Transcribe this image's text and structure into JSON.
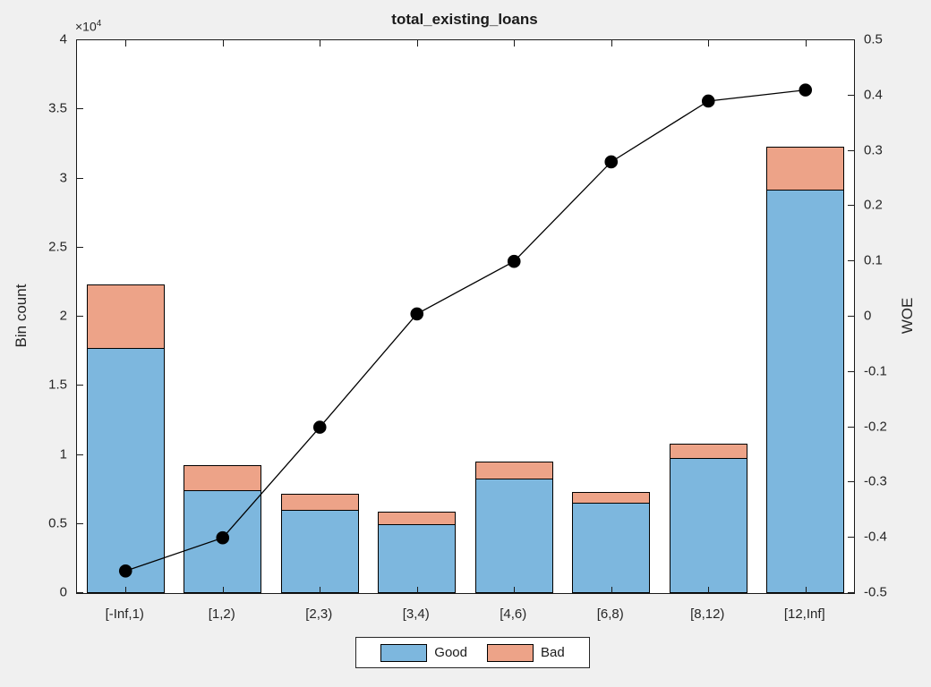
{
  "figure": {
    "title": "total_existing_loans",
    "left_axis_label": "Bin count",
    "right_axis_label": "WOE",
    "exponent_base": "×10",
    "exponent_power": "4"
  },
  "legend": {
    "items": [
      {
        "label": "Good",
        "color": "#7DB7DE"
      },
      {
        "label": "Bad",
        "color": "#EDA388"
      }
    ]
  },
  "colors": {
    "good_bar": "#7DB7DE",
    "bad_bar": "#EDA388",
    "woe_line": "#000000",
    "axis": "#1a1a1a",
    "figure_background": "#f0f0f0",
    "plot_background": "#ffffff"
  },
  "chart_data": {
    "type": "bar",
    "subtype": "stacked-bars-with-line-overlay-dual-axis",
    "title": "total_existing_loans",
    "categories": [
      "[-Inf,1)",
      "[1,2)",
      "[2,3)",
      "[3,4)",
      "[4,6)",
      "[6,8)",
      "[8,12)",
      "[12,Inf]"
    ],
    "series": [
      {
        "name": "Good",
        "type": "bar",
        "stack": "bincount",
        "axis": "left",
        "values": [
          17750,
          7450,
          6000,
          5000,
          8300,
          6550,
          9750,
          29200
        ]
      },
      {
        "name": "Bad",
        "type": "bar",
        "stack": "bincount",
        "axis": "left",
        "values": [
          4550,
          1800,
          1200,
          875,
          1230,
          780,
          1080,
          3100
        ]
      },
      {
        "name": "WOE",
        "type": "line",
        "axis": "right",
        "marker": "filled-circle",
        "values": [
          -0.46,
          -0.4,
          -0.2,
          0.005,
          0.1,
          0.28,
          0.39,
          0.41
        ]
      }
    ],
    "left_axis": {
      "label": "Bin count",
      "min": 0,
      "max": 40000,
      "tick_step": 5000,
      "tick_labels": [
        "0",
        "0.5",
        "1",
        "1.5",
        "2",
        "2.5",
        "3",
        "3.5",
        "4"
      ],
      "multiplier": "×10⁴"
    },
    "right_axis": {
      "label": "WOE",
      "min": -0.5,
      "max": 0.5,
      "tick_step": 0.1,
      "tick_labels": [
        "-0.5",
        "-0.4",
        "-0.3",
        "-0.2",
        "-0.1",
        "0",
        "0.1",
        "0.2",
        "0.3",
        "0.4",
        "0.5"
      ]
    },
    "legend_position": "south-outside",
    "grid": false
  }
}
